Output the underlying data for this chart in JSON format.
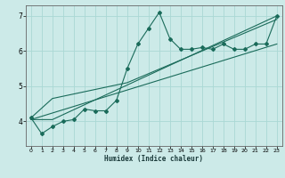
{
  "xlabel": "Humidex (Indice chaleur)",
  "ylabel": "",
  "bg_color": "#cceae8",
  "line_color": "#1a6b5a",
  "grid_color": "#aad8d4",
  "xlim": [
    -0.5,
    23.5
  ],
  "ylim": [
    3.3,
    7.3
  ],
  "yticks": [
    4,
    5,
    6,
    7
  ],
  "xticks": [
    0,
    1,
    2,
    3,
    4,
    5,
    6,
    7,
    8,
    9,
    10,
    11,
    12,
    13,
    14,
    15,
    16,
    17,
    18,
    19,
    20,
    21,
    22,
    23
  ],
  "main_x": [
    0,
    1,
    2,
    3,
    4,
    5,
    6,
    7,
    8,
    9,
    10,
    11,
    12,
    13,
    14,
    15,
    16,
    17,
    18,
    19,
    20,
    21,
    22,
    23
  ],
  "main_y": [
    4.1,
    3.65,
    3.85,
    4.0,
    4.05,
    4.35,
    4.3,
    4.3,
    4.6,
    5.5,
    6.2,
    6.65,
    7.1,
    6.35,
    6.05,
    6.05,
    6.1,
    6.05,
    6.2,
    6.05,
    6.05,
    6.2,
    6.2,
    7.0
  ],
  "line1_x": [
    0,
    2,
    23
  ],
  "line1_y": [
    4.05,
    4.05,
    7.0
  ],
  "line2_x": [
    0,
    23
  ],
  "line2_y": [
    4.05,
    6.2
  ],
  "line3_x": [
    0,
    2,
    9,
    23
  ],
  "line3_y": [
    4.1,
    4.65,
    5.1,
    6.9
  ]
}
